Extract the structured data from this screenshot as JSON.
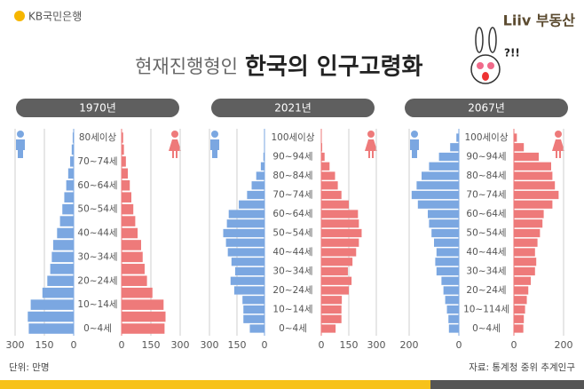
{
  "header": {
    "logo": "KB국민은행",
    "brand": "Liiv 부동산",
    "title": "현재진행형인",
    "title_bold": "한국의 인구고령화",
    "badge": "?!!"
  },
  "footer": {
    "unit": "단위: 만명",
    "source": "자료: 통계청 중위 추계인구"
  },
  "chart_data": [
    {
      "type": "pyramid",
      "title": "1970년",
      "categories": [
        "0~4세",
        null,
        "10~14세",
        null,
        "20~24세",
        null,
        "30~34세",
        null,
        "40~44세",
        null,
        "50~54세",
        null,
        "60~64세",
        null,
        "70~74세",
        null,
        "80세이상"
      ],
      "series": [
        {
          "color": "#7ba7e1",
          "values": [
            230,
            235,
            220,
            160,
            135,
            120,
            112,
            105,
            85,
            70,
            58,
            48,
            38,
            28,
            18,
            10,
            5
          ]
        },
        {
          "color": "#ee7a7a",
          "values": [
            220,
            225,
            215,
            158,
            130,
            118,
            108,
            100,
            82,
            70,
            60,
            50,
            42,
            32,
            22,
            12,
            8
          ]
        }
      ],
      "xlim": [
        0,
        300
      ],
      "xticks": [
        0,
        150,
        300
      ]
    },
    {
      "type": "pyramid",
      "title": "2021년",
      "categories": [
        "0~4세",
        null,
        "10~14세",
        null,
        "20~24세",
        null,
        "30~34세",
        null,
        "40~44세",
        null,
        "50~54세",
        null,
        "60~64세",
        null,
        "70~74세",
        null,
        "80~84세",
        null,
        "90~94세",
        null,
        "100세이상"
      ],
      "series": [
        {
          "color": "#7ba7e1",
          "values": [
            80,
            115,
            115,
            120,
            165,
            185,
            160,
            180,
            200,
            210,
            225,
            205,
            195,
            140,
            95,
            70,
            45,
            20,
            6,
            2,
            0.3
          ]
        },
        {
          "color": "#ee7a7a",
          "values": [
            78,
            110,
            110,
            112,
            150,
            165,
            145,
            170,
            190,
            205,
            220,
            205,
            200,
            150,
            110,
            90,
            75,
            45,
            18,
            5,
            1
          ]
        }
      ],
      "xlim": [
        0,
        300
      ],
      "xticks": [
        0,
        150,
        300
      ]
    },
    {
      "type": "pyramid",
      "title": "2067년",
      "categories": [
        "0~4세",
        null,
        "10~114세",
        null,
        "20~24세",
        null,
        "30~34세",
        null,
        "40~44세",
        null,
        "50~54세",
        null,
        "60~64세",
        null,
        "70~74세",
        null,
        "80~84세",
        null,
        "90~94세",
        null,
        "100세이상"
      ],
      "series": [
        {
          "color": "#7ba7e1",
          "values": [
            40,
            42,
            48,
            55,
            62,
            70,
            90,
            95,
            90,
            100,
            110,
            120,
            125,
            165,
            190,
            170,
            150,
            120,
            80,
            35,
            10
          ]
        },
        {
          "color": "#ee7a7a",
          "values": [
            38,
            40,
            45,
            52,
            58,
            68,
            85,
            90,
            85,
            95,
            105,
            115,
            120,
            155,
            180,
            165,
            155,
            150,
            100,
            40,
            12
          ]
        }
      ],
      "xlim": [
        0,
        200
      ],
      "xticks": [
        0,
        200
      ]
    }
  ]
}
